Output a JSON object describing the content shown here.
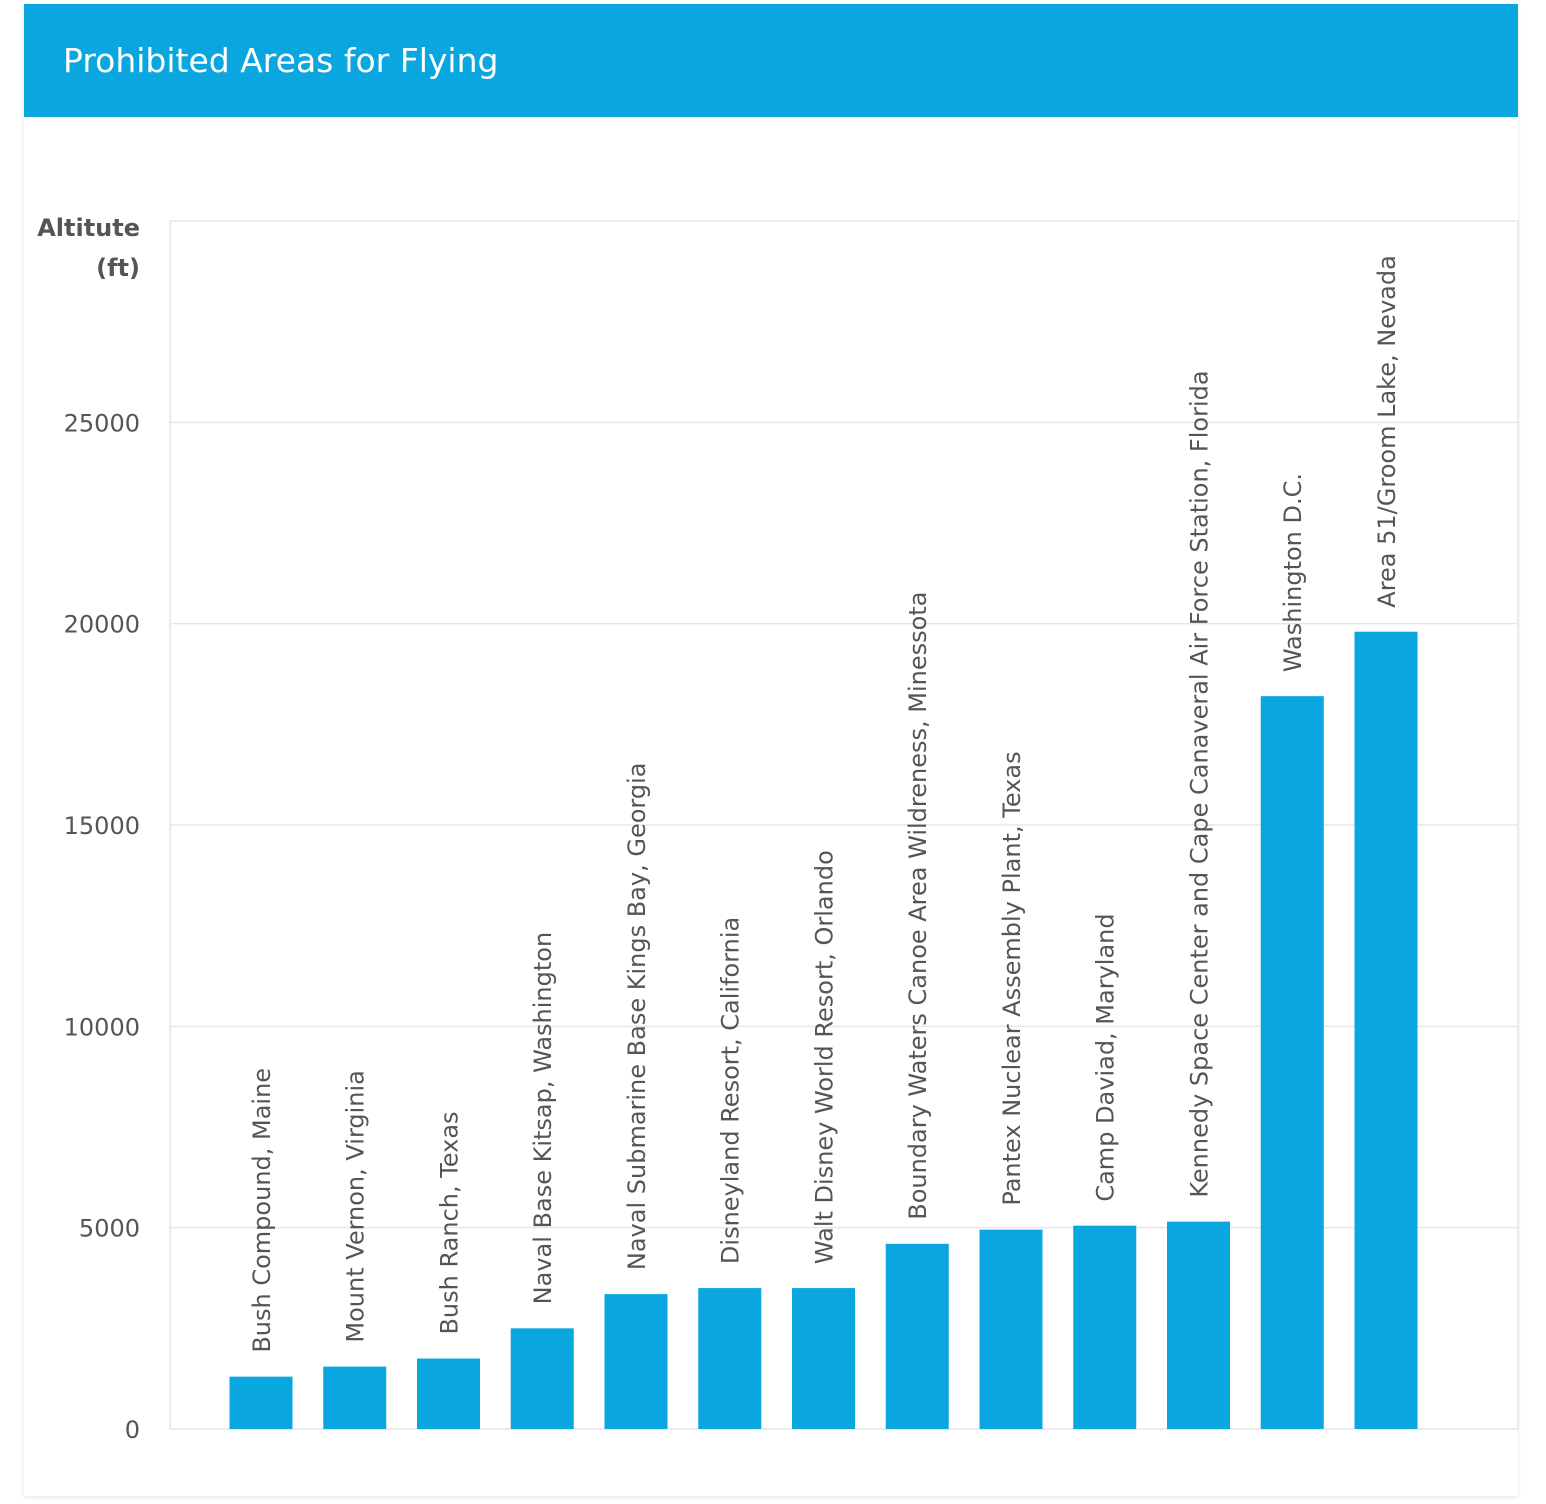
{
  "header": {
    "title": "Prohibited Areas for Flying"
  },
  "chart_data": {
    "type": "bar",
    "title": "Prohibited Areas for Flying",
    "ylabel": [
      "Altitute",
      "(ft)"
    ],
    "xlabel": "",
    "ylim": [
      0,
      30000
    ],
    "yticks": [
      0,
      5000,
      10000,
      15000,
      20000,
      25000
    ],
    "grid": true,
    "bar_color": "#0aa6e0",
    "categories": [
      "Bush Compound, Maine",
      "Mount Vernon, Virginia",
      "Bush Ranch, Texas",
      "Naval Base Kitsap, Washington",
      "Naval Submarine Base Kings Bay, Georgia",
      "Disneyland Resort, California",
      "Walt Disney World Resort, Orlando",
      "Boundary Waters Canoe Area Wildreness, Minessota",
      "Pantex Nuclear Assembly Plant, Texas",
      "Camp Daviad, Maryland",
      "Kennedy Space Center and Cape Canaveral Air Force Station, Florida",
      "Washington D.C.",
      "Area 51/Groom Lake, Nevada"
    ],
    "values": [
      1300,
      1550,
      1750,
      2500,
      3350,
      3500,
      3500,
      4600,
      4950,
      5050,
      5150,
      18200,
      19800
    ]
  }
}
